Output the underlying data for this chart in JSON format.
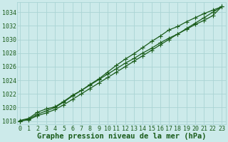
{
  "title": "Graphe pression niveau de la mer (hPa)",
  "x_min": 0,
  "x_max": 23,
  "y_min": 1017.5,
  "y_max": 1035.5,
  "y_ticks": [
    1018,
    1020,
    1022,
    1024,
    1026,
    1028,
    1030,
    1032,
    1034
  ],
  "x_ticks": [
    0,
    1,
    2,
    3,
    4,
    5,
    6,
    7,
    8,
    9,
    10,
    11,
    12,
    13,
    14,
    15,
    16,
    17,
    18,
    19,
    20,
    21,
    22,
    23
  ],
  "background_color": "#cceaea",
  "grid_color": "#aad4d4",
  "line_color": "#1a5c1a",
  "marker": "+",
  "series": [
    [
      1018.1,
      1018.4,
      1019.3,
      1019.8,
      1020.1,
      1020.9,
      1021.8,
      1022.5,
      1023.3,
      1024.1,
      1024.9,
      1025.7,
      1026.5,
      1027.2,
      1028.0,
      1028.7,
      1029.5,
      1030.2,
      1030.8,
      1031.5,
      1032.2,
      1032.8,
      1033.5,
      1034.8
    ],
    [
      1018.0,
      1018.3,
      1019.0,
      1019.5,
      1020.0,
      1020.8,
      1021.7,
      1022.5,
      1023.4,
      1024.2,
      1025.2,
      1026.2,
      1027.1,
      1027.9,
      1028.8,
      1029.7,
      1030.5,
      1031.4,
      1031.9,
      1032.6,
      1033.2,
      1033.8,
      1034.3,
      1034.8
    ],
    [
      1018.0,
      1018.2,
      1018.8,
      1019.2,
      1019.7,
      1020.4,
      1021.2,
      1022.0,
      1022.8,
      1023.6,
      1024.4,
      1025.2,
      1026.0,
      1026.8,
      1027.6,
      1028.4,
      1029.2,
      1030.0,
      1030.8,
      1031.6,
      1032.4,
      1033.2,
      1034.0,
      1034.8
    ]
  ],
  "font_color": "#1a5c1a",
  "title_fontsize": 7.5,
  "tick_fontsize": 6.0,
  "line_width": 0.9,
  "marker_size": 4
}
